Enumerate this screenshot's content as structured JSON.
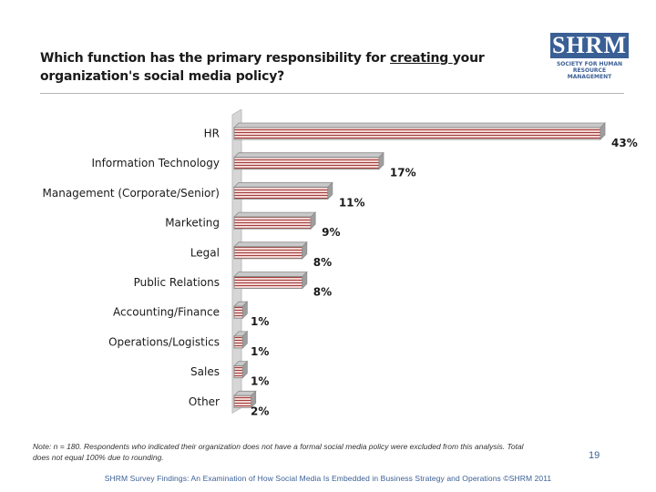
{
  "header": {
    "title_before": "Which function has the primary responsibility for ",
    "title_underlined": "creating ",
    "title_after": "your organization's social media policy?"
  },
  "logo": {
    "mark": "SHRM",
    "tagline": "SOCIETY FOR HUMAN RESOURCE MANAGEMENT"
  },
  "chart_data": {
    "type": "bar",
    "orientation": "horizontal",
    "title": "Which function has the primary responsibility for creating your organization's social media policy?",
    "categories": [
      "HR",
      "Information Technology",
      "Management (Corporate/Senior)",
      "Marketing",
      "Legal",
      "Public Relations",
      "Accounting/Finance",
      "Operations/Logistics",
      "Sales",
      "Other"
    ],
    "values": [
      43,
      17,
      11,
      9,
      8,
      8,
      1,
      1,
      1,
      2
    ],
    "labels": [
      "43%",
      "17%",
      "11%",
      "9%",
      "8%",
      "8%",
      "1%",
      "1%",
      "1%",
      "2%"
    ],
    "unit": "%",
    "xlim": [
      0,
      43
    ],
    "xlabel": "",
    "ylabel": "",
    "colors": {
      "bar_fill": "#f3d6d3",
      "bar_line": "#a23b3b",
      "bar_edge": "#8c8c8c",
      "bar_top": "#c9c9c9",
      "wall": "#d6d6d6"
    }
  },
  "note": "Note: n = 180. Respondents who indicated their organization does not have a formal social media policy were excluded from this analysis. Total does not equal 100% due to rounding.",
  "page_number": "19",
  "footer": "SHRM Survey Findings: An Examination of How Social Media Is Embedded in Business Strategy and Operations ©SHRM 2011"
}
